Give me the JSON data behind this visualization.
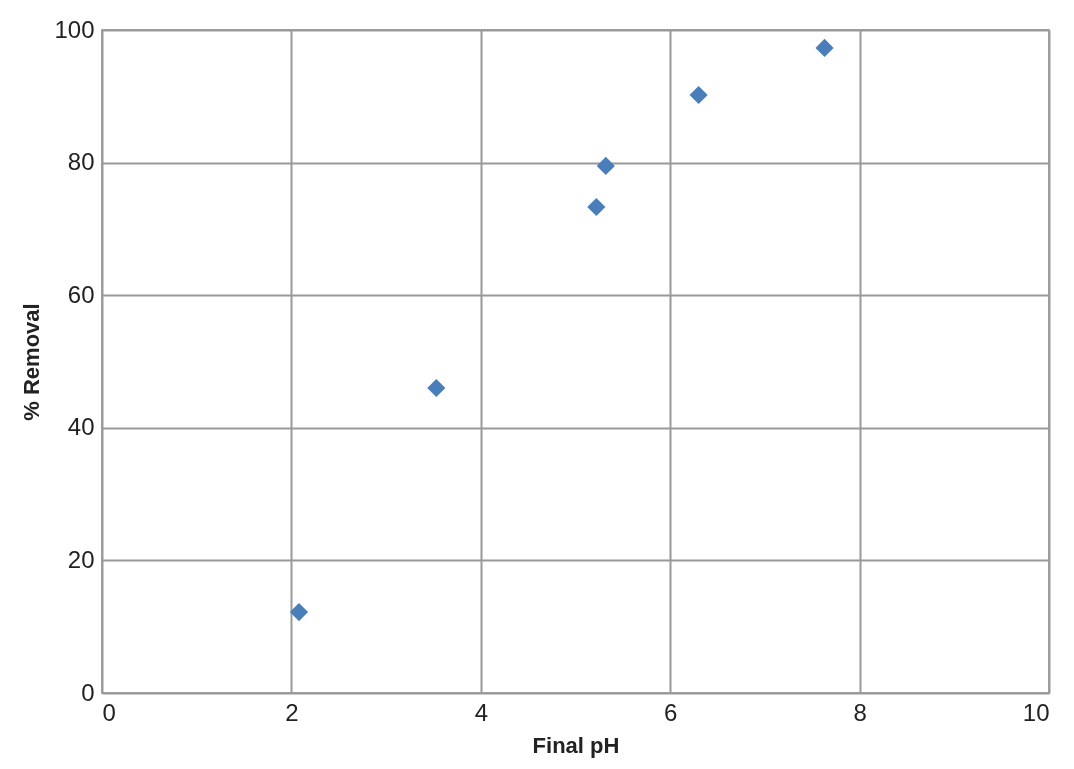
{
  "chart_data": {
    "type": "scatter",
    "xlabel": "Final pH",
    "ylabel": "% Removal",
    "x": [
      2.08,
      3.53,
      5.22,
      5.32,
      6.3,
      7.63
    ],
    "series": [
      {
        "color": "#4a7ebb",
        "values": [
          12.2,
          46,
          73.3,
          79.5,
          90.2,
          97.3
        ]
      }
    ],
    "xlim": [
      0,
      10
    ],
    "xticks": [
      0,
      2,
      4,
      6,
      8,
      10
    ],
    "ylim": [
      0,
      100
    ],
    "yticks": [
      0,
      20,
      40,
      60,
      80,
      100
    ],
    "grid": true,
    "marker": "diamond"
  }
}
